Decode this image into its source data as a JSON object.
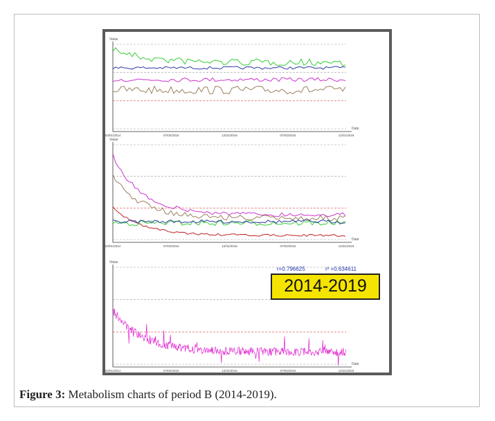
{
  "figure": {
    "y_label": "Value",
    "x_label": "Date",
    "x_ticks": [
      "03/01/2014",
      "07/02/2015",
      "12/31/2016",
      "07/02/2018",
      "12/31/2019"
    ],
    "annotation": "2014-2019",
    "stats": [
      "r=0.796625",
      "r² =0.634611"
    ]
  },
  "caption": {
    "label": "Figure 3:",
    "text": "Metabolism charts of period B (2014-2019)."
  }
}
